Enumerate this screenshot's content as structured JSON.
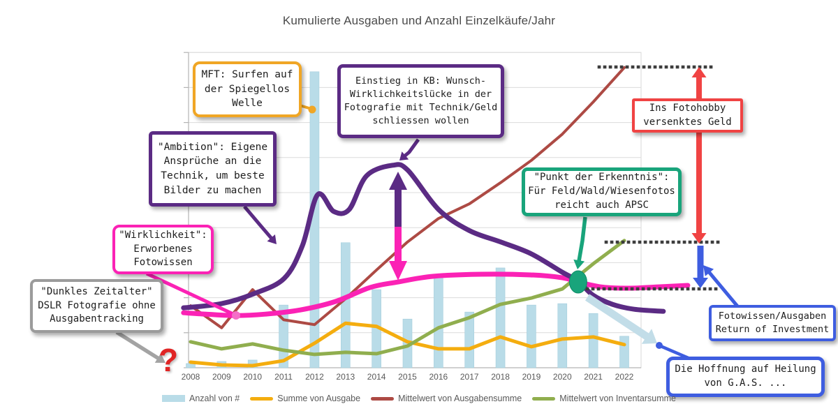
{
  "title": "Kumulierte Ausgaben und Anzahl Einzelkäufe/Jahr",
  "question_mark": "?",
  "chart_data": {
    "type": "composite (column + line, annotated)",
    "categories": [
      2008,
      2009,
      2010,
      2011,
      2012,
      2013,
      2014,
      2015,
      2016,
      2017,
      2018,
      2019,
      2020,
      2021,
      2022
    ],
    "xlabel": "",
    "ylabel": "",
    "y_axis": {
      "tick_labels_visible": false,
      "gridlines": "horizontal",
      "units_per_gridline": 1,
      "units_max": 9
    },
    "legend_position": "bottom",
    "series": [
      {
        "name": "Anzahl von #",
        "type": "bar",
        "color": "#b9dce8",
        "values": [
          0.12,
          0.18,
          0.22,
          1.79,
          8.45,
          3.57,
          2.23,
          1.39,
          2.57,
          1.59,
          2.85,
          1.79,
          1.83,
          1.55,
          0.9
        ]
      },
      {
        "name": "Summe von Ausgabe",
        "type": "line",
        "color": "#f4ad0f",
        "values": [
          0.16,
          0.08,
          0.06,
          0.2,
          0.7,
          1.27,
          1.18,
          0.74,
          0.54,
          0.54,
          0.88,
          0.6,
          0.82,
          0.88,
          0.66
        ]
      },
      {
        "name": "Mittelwert von Ausgabensumme",
        "type": "line",
        "color": "#ad4a44",
        "values": [
          1.77,
          1.14,
          2.23,
          1.37,
          1.23,
          1.97,
          2.79,
          3.59,
          4.26,
          4.68,
          5.28,
          5.92,
          6.67,
          7.59,
          8.57
        ]
      },
      {
        "name": "Mittelwert von Inventarsumme",
        "type": "line",
        "color": "#90ae4e",
        "values": [
          0.74,
          0.54,
          0.68,
          0.5,
          0.38,
          0.44,
          0.4,
          0.62,
          1.14,
          1.43,
          1.81,
          1.99,
          2.25,
          2.97,
          3.63
        ]
      }
    ],
    "annotation_curves": [
      {
        "name": "Ambition",
        "color": "#5b2b84",
        "points": [
          [
            2007.77,
            1.71
          ],
          [
            2008.99,
            1.83
          ],
          [
            2010.03,
            2.11
          ],
          [
            2011.02,
            2.55
          ],
          [
            2011.61,
            3.49
          ],
          [
            2012.1,
            4.94
          ],
          [
            2012.62,
            4.46
          ],
          [
            2013.12,
            4.52
          ],
          [
            2013.68,
            5.48
          ],
          [
            2014.52,
            5.78
          ],
          [
            2015.01,
            5.64
          ],
          [
            2016.0,
            4.52
          ],
          [
            2016.99,
            3.92
          ],
          [
            2018.01,
            3.59
          ],
          [
            2019.0,
            3.25
          ],
          [
            2019.99,
            2.73
          ],
          [
            2020.51,
            2.47
          ],
          [
            2020.99,
            2.07
          ],
          [
            2021.62,
            1.81
          ],
          [
            2022.32,
            1.67
          ],
          [
            2023.26,
            1.61
          ]
        ]
      },
      {
        "name": "Wirklichkeit",
        "color": "#fb22b5",
        "points": [
          [
            2007.77,
            1.57
          ],
          [
            2008.5,
            1.53
          ],
          [
            2009.47,
            1.49
          ],
          [
            2010.41,
            1.53
          ],
          [
            2011.54,
            1.65
          ],
          [
            2012.67,
            1.89
          ],
          [
            2013.79,
            2.29
          ],
          [
            2014.7,
            2.45
          ],
          [
            2015.82,
            2.61
          ],
          [
            2017.4,
            2.67
          ],
          [
            2018.98,
            2.65
          ],
          [
            2020.0,
            2.57
          ],
          [
            2020.51,
            2.45
          ],
          [
            2021.23,
            2.31
          ],
          [
            2022.13,
            2.27
          ],
          [
            2023.15,
            2.31
          ],
          [
            2024.05,
            2.35
          ]
        ]
      }
    ],
    "point_of_insight": {
      "year": 2020.51,
      "units": 2.45,
      "color": "#19a47b"
    }
  },
  "callouts": {
    "mft": {
      "text": "MFT: Surfen auf\nder Spiegellos\nWelle",
      "color": "#f0a625"
    },
    "einstieg": {
      "text": "Einstieg in KB: Wunsch-\nWirklichkeitslücke in der\nFotografie mit Technik/Geld\nschliessen wollen",
      "color": "#5b2b84"
    },
    "ambition": {
      "text": "\"Ambition\": Eigene\nAnsprüche an die\nTechnik, um beste\nBilder zu machen",
      "color": "#5b2b84"
    },
    "wirklichkeit": {
      "text": "\"Wirklichkeit\":\nErworbenes\nFotowissen",
      "color": "#fb22b5"
    },
    "dunkles": {
      "text": "\"Dunkles Zeitalter\"\nDSLR Fotografie ohne\nAusgabentracking",
      "color": "#9b9b9b"
    },
    "punkt": {
      "text": "\"Punkt der Erkenntnis\":\nFür Feld/Wald/Wiesenfotos\nreicht auch APSC",
      "color": "#19a47b"
    },
    "fotohobby": {
      "text": "Ins Fotohobby\nversenktes Geld",
      "color": "#f04343"
    },
    "roi": {
      "text": "Fotowissen/Ausgaben\nReturn of Investment",
      "color": "#3e5de0"
    },
    "gas": {
      "text": "Die Hoffnung auf Heilung\nvon G.A.S. ...",
      "color": "#3e5de0"
    }
  },
  "annotation_colors": {
    "gap_arrow_top": "#5b2b84",
    "gap_arrow_bottom": "#fb22b5",
    "money_span_arrow": "#f04343",
    "roi_span_arrow": "#3e5de0",
    "hope_arrow": "#c2dde8",
    "dark_age_arrow": "#a3a3a3",
    "dotted_line": "#3d3d3d"
  }
}
